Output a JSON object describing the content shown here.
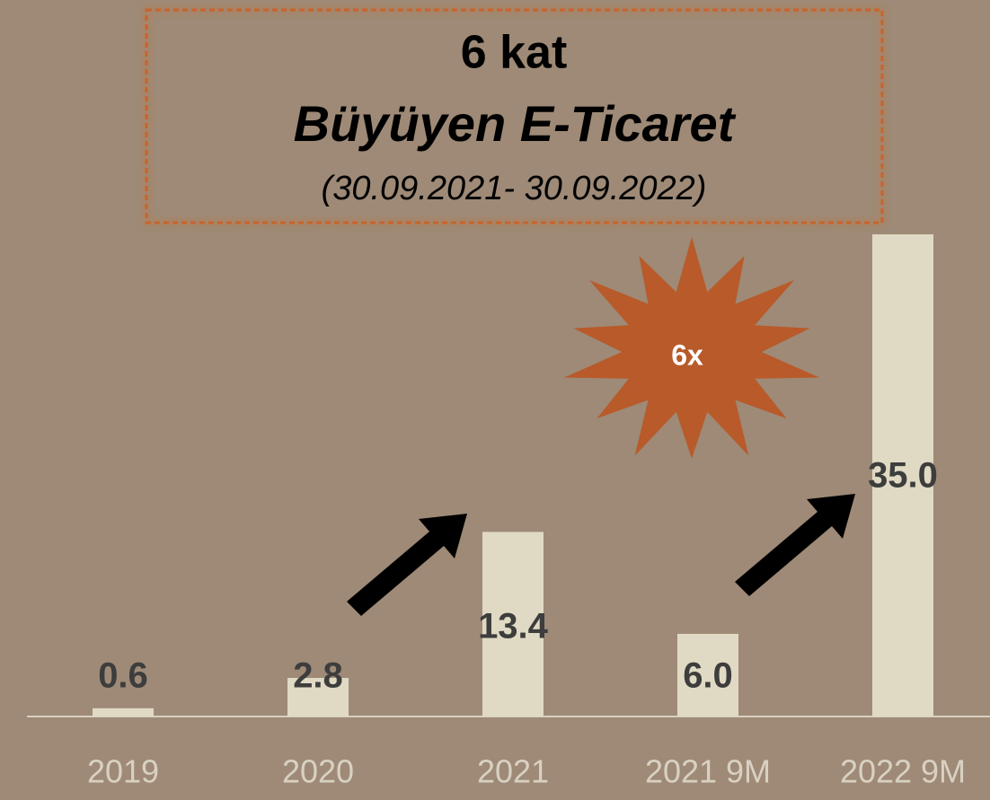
{
  "chart_data": {
    "type": "bar",
    "title": "6 kat",
    "subtitle": "Büyüyen E-Ticaret",
    "period": "(30.09.2021- 30.09.2022)",
    "annotation": "6x",
    "categories": [
      "2019",
      "2020",
      "2021",
      "2021 9M",
      "2022 9M"
    ],
    "values": [
      0.6,
      2.8,
      13.4,
      6.0,
      35.0
    ],
    "value_labels": [
      "0.6",
      "2.8",
      "13.4",
      "6.0",
      "35.0"
    ],
    "color": "#e0dac4"
  }
}
